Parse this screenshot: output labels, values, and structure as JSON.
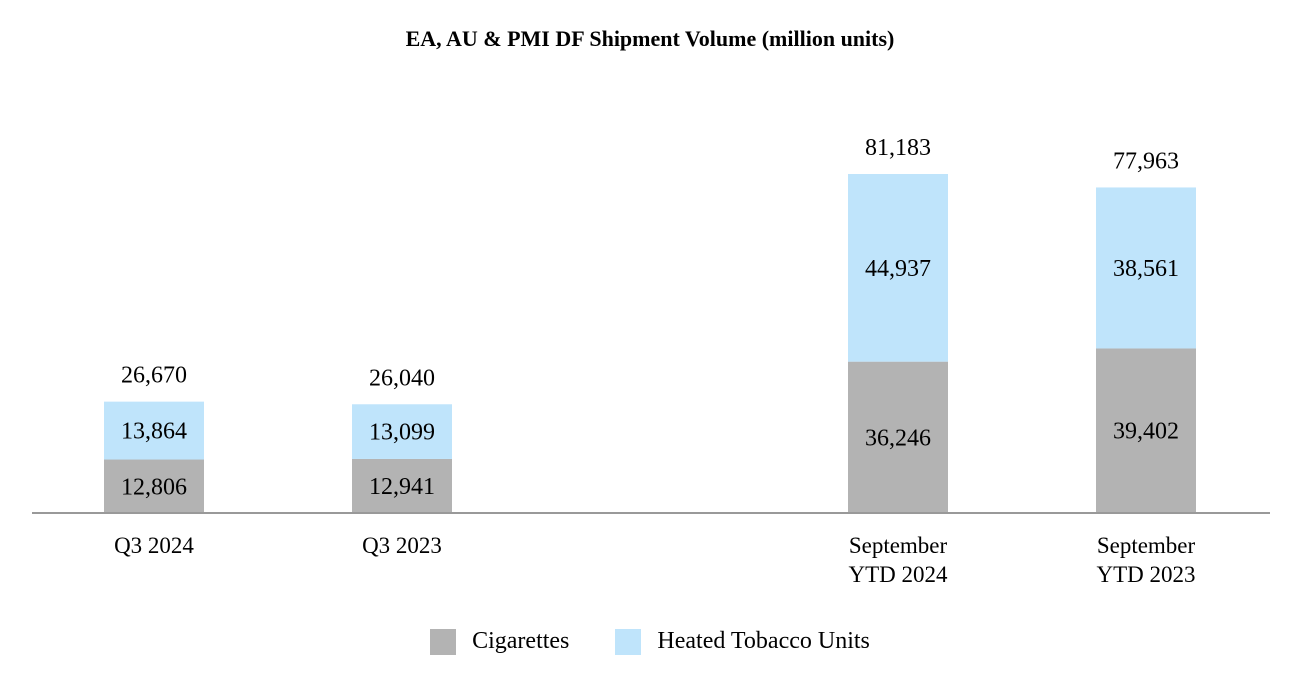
{
  "chart_data": {
    "type": "bar",
    "stacked": true,
    "title": "EA, AU & PMI DF Shipment Volume (million units)",
    "categories": [
      "Q3 2024",
      "Q3 2023",
      "September YTD 2024",
      "September YTD 2023"
    ],
    "category_lines": [
      [
        "Q3 2024"
      ],
      [
        "Q3 2023"
      ],
      [
        "September",
        "YTD 2024"
      ],
      [
        "September",
        "YTD 2023"
      ]
    ],
    "series": [
      {
        "name": "Cigarettes",
        "color": "#b3b3b3",
        "values": [
          12806,
          12941,
          36246,
          39402
        ],
        "labels": [
          "12,806",
          "12,941",
          "36,246",
          "39,402"
        ]
      },
      {
        "name": "Heated Tobacco Units",
        "color": "#bfe4fb",
        "values": [
          13864,
          13099,
          44937,
          38561
        ],
        "labels": [
          "13,864",
          "13,099",
          "44,937",
          "38,561"
        ]
      }
    ],
    "totals": [
      26670,
      26040,
      81183,
      77963
    ],
    "total_labels": [
      "26,670",
      "26,040",
      "81,183",
      "77,963"
    ],
    "ylim": [
      0,
      81183
    ],
    "xlabel": "",
    "ylabel": "",
    "grid": false,
    "legend": "bottom-center",
    "axis_color": "#999999"
  }
}
